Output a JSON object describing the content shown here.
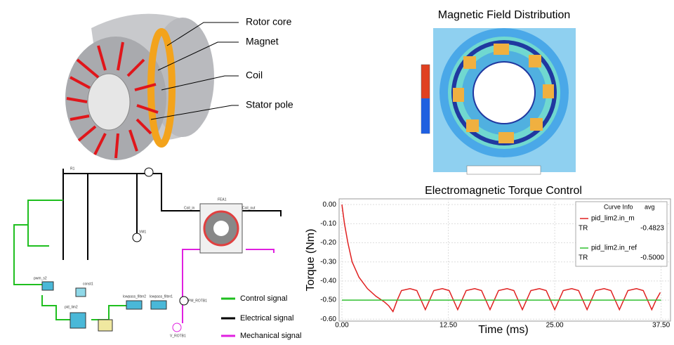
{
  "diagram": {
    "labels": [
      "Rotor core",
      "Magnet",
      "Coil",
      "Stator pole"
    ]
  },
  "field_plot": {
    "title": "Magnetic Field Distribution"
  },
  "schematic": {
    "labels": [
      "R1",
      "FEA1",
      "Coil_out",
      "Coil_in",
      "VM1",
      "pwm_s2",
      "pid_lim2",
      "const1",
      "lowpass_filter2",
      "lowpass_filter1",
      "PM_ROTB1",
      "V_ROTB1"
    ],
    "legend": [
      "Control signal",
      "Electrical signal",
      "Mechanical signal"
    ]
  },
  "chart_data": {
    "type": "line",
    "title": "Electromagnetic Torque Control",
    "x_label": "Time (ms)",
    "y_label": "Torque (Nm)",
    "xlim": [
      -0.33,
      38.6
    ],
    "ylim": [
      -0.61,
      0.03
    ],
    "xticks": [
      {
        "value": 0,
        "label": "0.00"
      },
      {
        "value": 12.5,
        "label": "12.50"
      },
      {
        "value": 25,
        "label": "25.00"
      },
      {
        "value": 37.5,
        "label": "37.50"
      }
    ],
    "yticks": [
      {
        "value": -0.6,
        "label": "-0.60"
      },
      {
        "value": -0.5,
        "label": "-0.50"
      },
      {
        "value": -0.4,
        "label": "-0.40"
      },
      {
        "value": -0.3,
        "label": "-0.30"
      },
      {
        "value": -0.2,
        "label": "-0.20"
      },
      {
        "value": -0.1,
        "label": "-0.10"
      },
      {
        "value": 0,
        "label": "0.00"
      }
    ],
    "grid": true,
    "legend_header": [
      "Curve Info",
      "avg"
    ],
    "series": [
      {
        "name": "pid_lim2.in_m",
        "source": "TR",
        "avg_label": "-0.4823",
        "avg": -0.4823,
        "color": "#e02020",
        "x": [
          0,
          0.3,
          0.7,
          1.2,
          2.0,
          3.0,
          4.0,
          5.0,
          5.5,
          6.0,
          6.5,
          7.0,
          8.0,
          8.8,
          9.8,
          10.3,
          10.8,
          11.8,
          12.6,
          13.6,
          14.1,
          14.6,
          15.6,
          16.4,
          17.4,
          17.9,
          18.4,
          19.4,
          20.2,
          21.2,
          21.7,
          22.2,
          23.2,
          24.0,
          25.0,
          25.5,
          26.0,
          27.0,
          27.8,
          28.8,
          29.3,
          29.8,
          30.8,
          31.6,
          32.6,
          33.1,
          33.6,
          34.6,
          35.4,
          36.4,
          36.9,
          37.4
        ],
        "values": [
          0,
          -0.1,
          -0.2,
          -0.3,
          -0.38,
          -0.44,
          -0.48,
          -0.51,
          -0.53,
          -0.56,
          -0.5,
          -0.45,
          -0.44,
          -0.45,
          -0.55,
          -0.5,
          -0.45,
          -0.44,
          -0.45,
          -0.55,
          -0.5,
          -0.45,
          -0.44,
          -0.45,
          -0.55,
          -0.5,
          -0.45,
          -0.44,
          -0.45,
          -0.55,
          -0.5,
          -0.45,
          -0.44,
          -0.45,
          -0.55,
          -0.5,
          -0.45,
          -0.44,
          -0.45,
          -0.55,
          -0.5,
          -0.45,
          -0.44,
          -0.45,
          -0.55,
          -0.5,
          -0.45,
          -0.44,
          -0.45,
          -0.55,
          -0.5,
          -0.46
        ]
      },
      {
        "name": "pid_lim2.in_ref",
        "source": "TR",
        "avg_label": "-0.5000",
        "avg": -0.5,
        "color": "#30c030",
        "x": [
          0,
          37.5
        ],
        "values": [
          -0.5,
          -0.5
        ]
      }
    ]
  }
}
